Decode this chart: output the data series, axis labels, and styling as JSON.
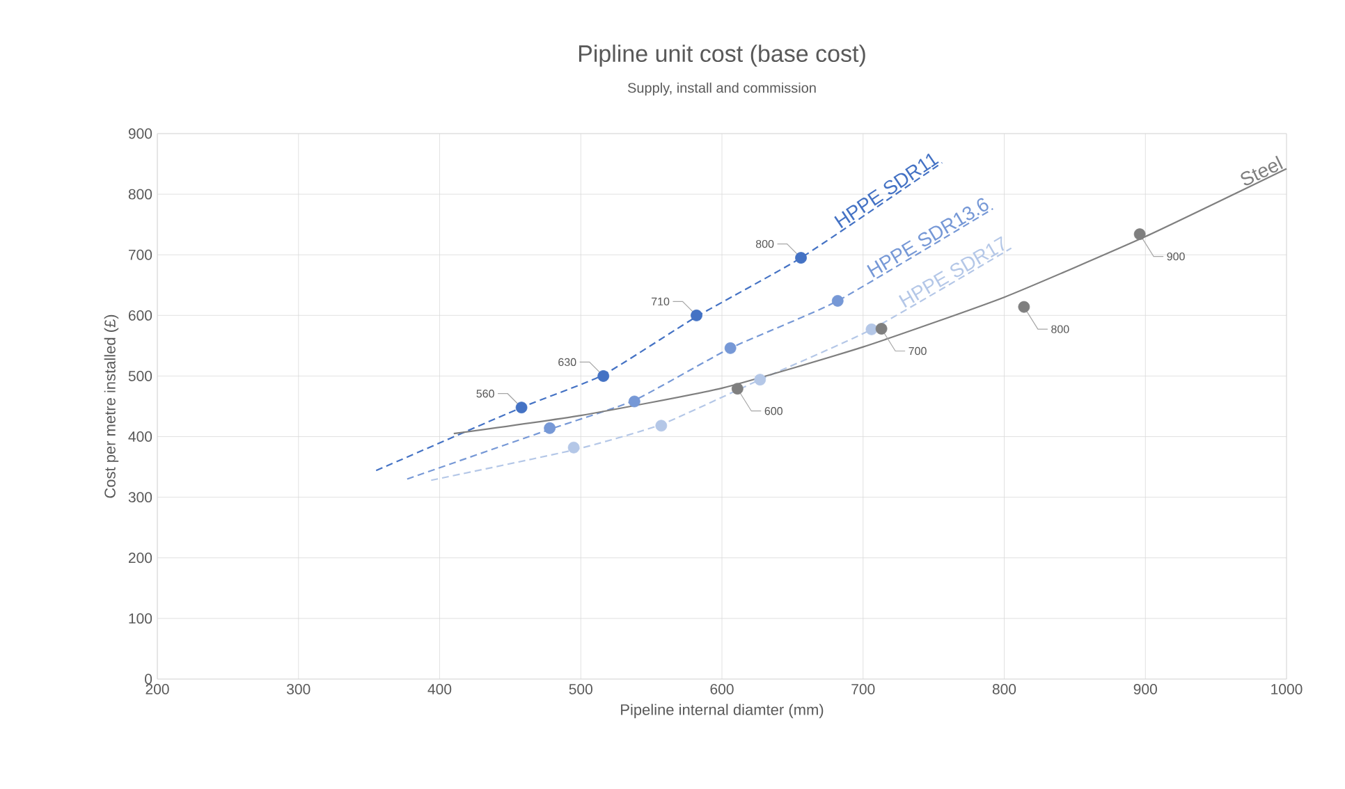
{
  "chart_data": {
    "type": "scatter",
    "title": "Pipline unit cost (base cost)",
    "subtitle": "Supply, install and commission",
    "xlabel": "Pipeline internal diamter (mm)",
    "ylabel": "Cost per metre installed (£)",
    "xlim": [
      200,
      1000
    ],
    "ylim": [
      0,
      900
    ],
    "xticks": [
      200,
      300,
      400,
      500,
      600,
      700,
      800,
      900,
      1000
    ],
    "yticks": [
      0,
      100,
      200,
      300,
      400,
      500,
      600,
      700,
      800,
      900
    ],
    "grid": true,
    "series": [
      {
        "marker": "circle",
        "color": "#4472c4",
        "x": [
          458,
          516,
          582,
          656
        ],
        "values": [
          448,
          500,
          600,
          695
        ]
      },
      {
        "marker": "circle",
        "color": "#7698d6",
        "x": [
          478,
          538,
          606,
          682
        ],
        "values": [
          414,
          458,
          546,
          624
        ]
      },
      {
        "marker": "circle",
        "color": "#b4c7e7",
        "x": [
          495,
          557,
          627,
          706
        ],
        "values": [
          382,
          418,
          494,
          577
        ]
      },
      {
        "marker": "circle",
        "color": "#7f7f7f",
        "x": [
          611,
          713,
          814,
          896
        ],
        "values": [
          479,
          578,
          614,
          734
        ]
      },
      {
        "type": "line",
        "name": "HPPE SDR11",
        "line_style": "dashed",
        "color": "#4472c4",
        "x": [
          355,
          458,
          516,
          582,
          656,
          756
        ],
        "values": [
          344,
          448,
          502,
          598,
          695,
          852
        ]
      },
      {
        "type": "line",
        "name": "HPPE SDR13.6",
        "line_style": "dashed",
        "color": "#7698d6",
        "x": [
          377,
          478,
          538,
          606,
          682,
          792
        ],
        "values": [
          330,
          412,
          460,
          546,
          624,
          776
        ]
      },
      {
        "type": "line",
        "name": "HPPE SDR17",
        "line_style": "dashed",
        "color": "#b4c7e7",
        "x": [
          394,
          495,
          557,
          627,
          706,
          805
        ],
        "values": [
          328,
          378,
          420,
          494,
          577,
          711
        ]
      },
      {
        "type": "line",
        "name": "Steel",
        "line_style": "solid",
        "color": "#7f7f7f",
        "x": [
          410,
          500,
          600,
          700,
          800,
          900,
          1000
        ],
        "values": [
          405,
          435,
          480,
          548,
          630,
          730,
          842
        ]
      }
    ],
    "annotations": [
      {
        "text": "560",
        "x": 458,
        "y": 448
      },
      {
        "text": "630",
        "x": 516,
        "y": 500
      },
      {
        "text": "710",
        "x": 582,
        "y": 600
      },
      {
        "text": "800",
        "x": 656,
        "y": 695
      },
      {
        "text": "600",
        "x": 611,
        "y": 479
      },
      {
        "text": "700",
        "x": 713,
        "y": 578
      },
      {
        "text": "800",
        "x": 814,
        "y": 614
      },
      {
        "text": "900",
        "x": 896,
        "y": 734
      }
    ]
  }
}
